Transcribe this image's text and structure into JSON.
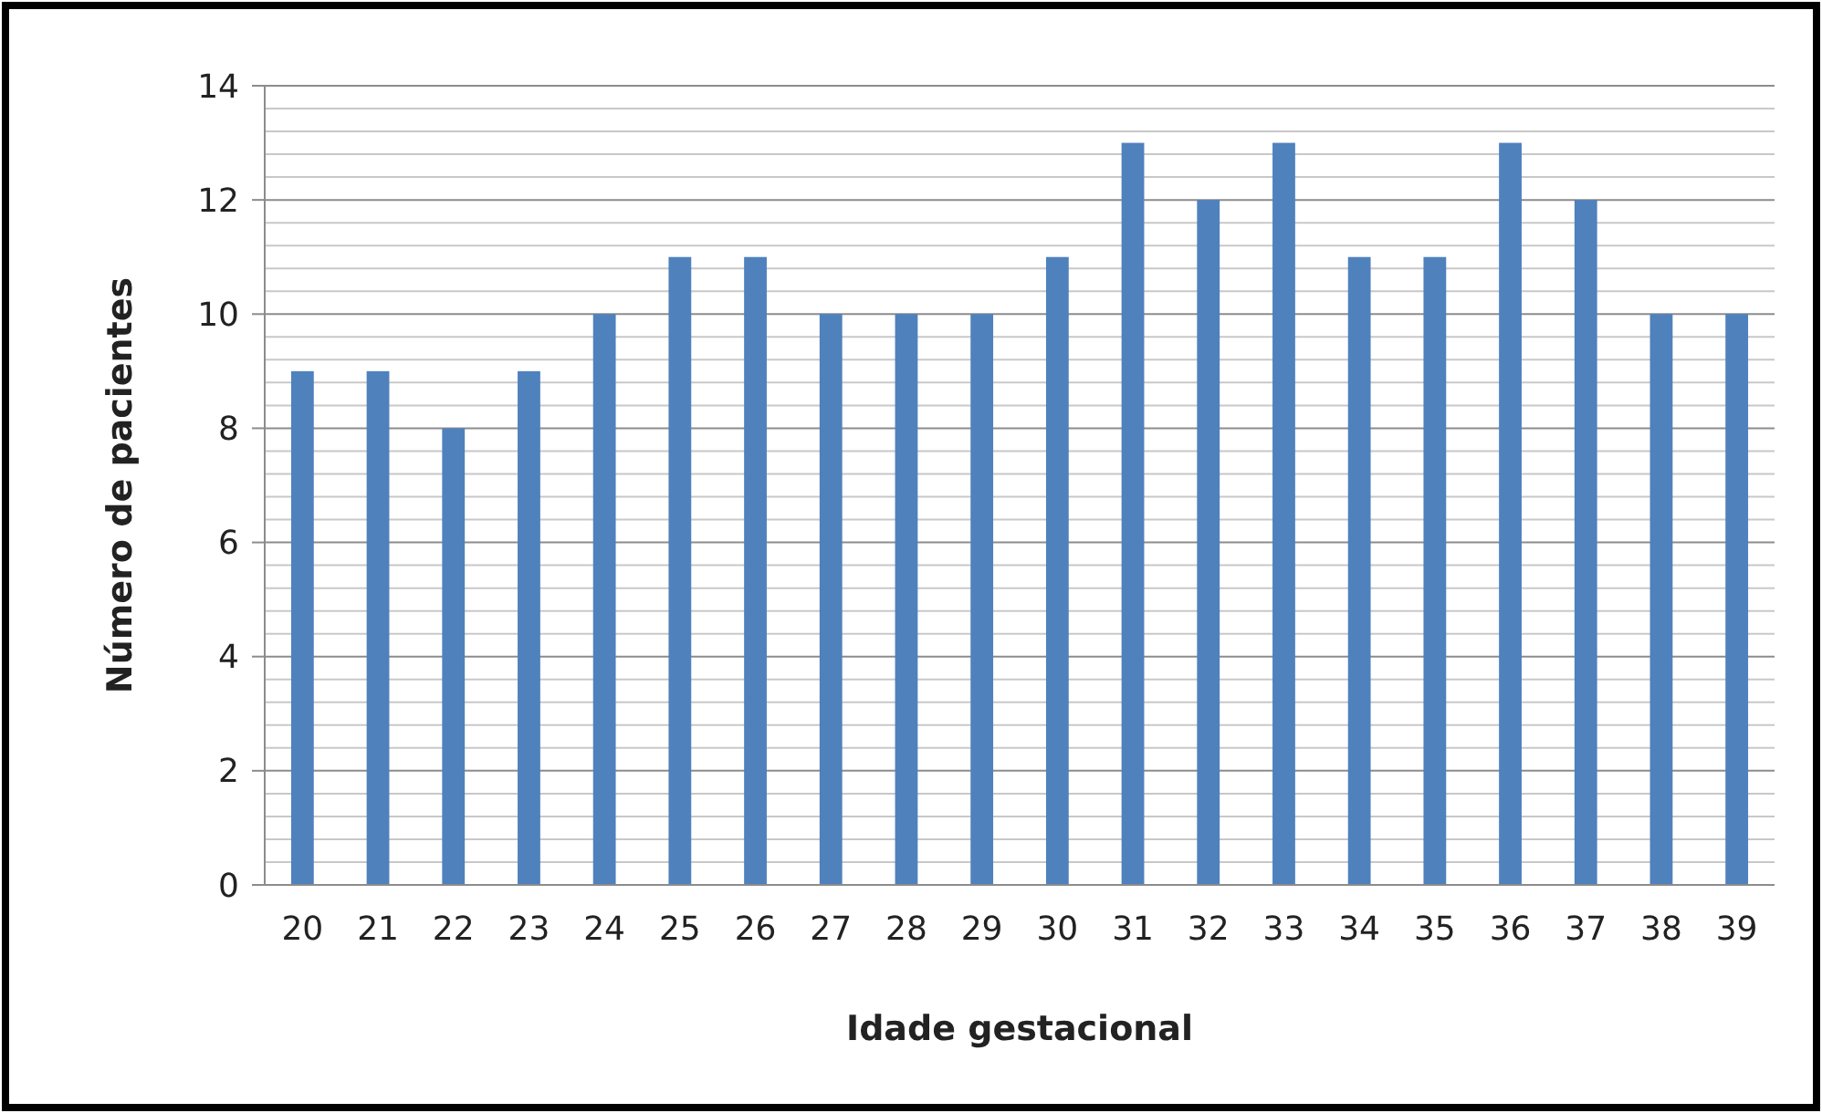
{
  "chart_data": {
    "type": "bar",
    "xlabel": "Idade gestacional",
    "ylabel": "Número de pacientes",
    "categories": [
      "20",
      "21",
      "22",
      "23",
      "24",
      "25",
      "26",
      "27",
      "28",
      "29",
      "30",
      "31",
      "32",
      "33",
      "34",
      "35",
      "36",
      "37",
      "38",
      "39"
    ],
    "values": [
      9,
      9,
      8,
      9,
      10,
      11,
      11,
      10,
      10,
      10,
      11,
      13,
      12,
      13,
      11,
      11,
      13,
      12,
      10,
      10
    ],
    "color": "#4f81bd",
    "ylim": [
      0,
      14
    ],
    "yticks": [
      0,
      {
        "value": 0.4,
        "label": null
      },
      {
        "value": 0.8,
        "label": null
      },
      {
        "value": 1.2,
        "label": null
      },
      {
        "value": 1.6,
        "label": null
      },
      2,
      {
        "value": 2.4,
        "label": null
      },
      {
        "value": 2.8,
        "label": null
      },
      {
        "value": 3.2,
        "label": null
      },
      {
        "value": 3.6,
        "label": null
      },
      4,
      {
        "value": 4.4,
        "label": null
      },
      {
        "value": 4.8,
        "label": null
      },
      {
        "value": 5.2,
        "label": null
      },
      {
        "value": 5.6,
        "label": null
      },
      6,
      {
        "value": 6.4,
        "label": null
      },
      {
        "value": 6.8,
        "label": null
      },
      {
        "value": 7.2,
        "label": null
      },
      {
        "value": 7.6,
        "label": null
      },
      8,
      {
        "value": 8.4,
        "label": null
      },
      {
        "value": 8.8,
        "label": null
      },
      {
        "value": 9.2,
        "label": null
      },
      {
        "value": 9.6,
        "label": null
      },
      10,
      {
        "value": 10.4,
        "label": null
      },
      {
        "value": 10.8,
        "label": null
      },
      {
        "value": 11.2,
        "label": null
      },
      {
        "value": 11.6,
        "label": null
      },
      12,
      {
        "value": 12.4,
        "label": null
      },
      {
        "value": 12.8,
        "label": null
      },
      {
        "value": 13.2,
        "label": null
      },
      {
        "value": 13.6,
        "label": null
      },
      14
    ],
    "grid": "y"
  }
}
